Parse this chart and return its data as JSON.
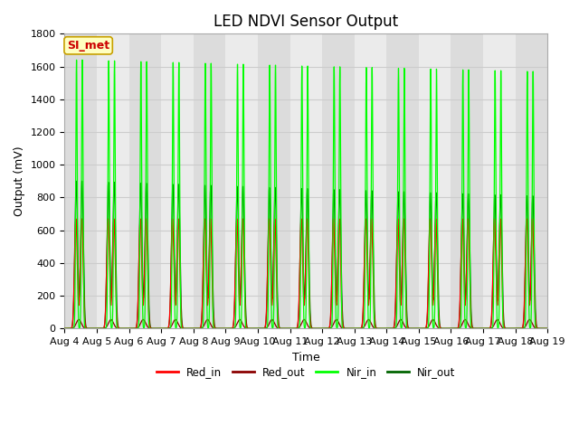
{
  "title": "LED NDVI Sensor Output",
  "xlabel": "Time",
  "ylabel": "Output (mV)",
  "ylim": [
    0,
    1800
  ],
  "xlim_days": [
    4,
    19
  ],
  "bg_color": "#ffffff",
  "band_color_odd": "#dcdcdc",
  "band_color_even": "#ebebeb",
  "grid_color": "#cccccc",
  "colors": {
    "Red_in": "#ff0000",
    "Red_out": "#8b0000",
    "Nir_in": "#00ff00",
    "Nir_out": "#006400"
  },
  "annotation_text": "SI_met",
  "annotation_bg": "#ffffc0",
  "annotation_border": "#c8a000",
  "start_day": 4,
  "end_day": 19,
  "Red_in_peak": 670,
  "Red_out_peak": 55,
  "Nir_in_peak_early": 1640,
  "Nir_in_peak_late": 1570,
  "Nir_out_peak_early": 900,
  "Nir_out_peak_late": 810,
  "title_fontsize": 12,
  "label_fontsize": 9,
  "tick_fontsize": 8
}
